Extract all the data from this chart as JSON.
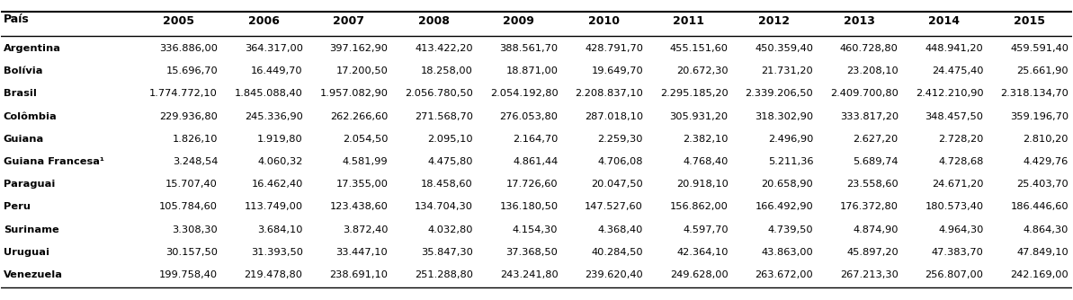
{
  "col_header": [
    "País",
    "2005",
    "2006",
    "2007",
    "2008",
    "2009",
    "2010",
    "2011",
    "2012",
    "2013",
    "2014",
    "2015"
  ],
  "rows": [
    [
      "Argentina",
      "336.886,00",
      "364.317,00",
      "397.162,90",
      "413.422,20",
      "388.561,70",
      "428.791,70",
      "455.151,60",
      "450.359,40",
      "460.728,80",
      "448.941,20",
      "459.591,40"
    ],
    [
      "Bolívia",
      "15.696,70",
      "16.449,70",
      "17.200,50",
      "18.258,00",
      "18.871,00",
      "19.649,70",
      "20.672,30",
      "21.731,20",
      "23.208,10",
      "24.475,40",
      "25.661,90"
    ],
    [
      "Brasil",
      "1.774.772,10",
      "1.845.088,40",
      "1.957.082,90",
      "2.056.780,50",
      "2.054.192,80",
      "2.208.837,10",
      "2.295.185,20",
      "2.339.206,50",
      "2.409.700,80",
      "2.412.210,90",
      "2.318.134,70"
    ],
    [
      "Colômbia",
      "229.936,80",
      "245.336,90",
      "262.266,60",
      "271.568,70",
      "276.053,80",
      "287.018,10",
      "305.931,20",
      "318.302,90",
      "333.817,20",
      "348.457,50",
      "359.196,70"
    ],
    [
      "Guiana",
      "1.826,10",
      "1.919,80",
      "2.054,50",
      "2.095,10",
      "2.164,70",
      "2.259,30",
      "2.382,10",
      "2.496,90",
      "2.627,20",
      "2.728,20",
      "2.810,20"
    ],
    [
      "Guiana Francesa¹",
      "3.248,54",
      "4.060,32",
      "4.581,99",
      "4.475,80",
      "4.861,44",
      "4.706,08",
      "4.768,40",
      "5.211,36",
      "5.689,74",
      "4.728,68",
      "4.429,76"
    ],
    [
      "Paraguai",
      "15.707,40",
      "16.462,40",
      "17.355,00",
      "18.458,60",
      "17.726,60",
      "20.047,50",
      "20.918,10",
      "20.658,90",
      "23.558,60",
      "24.671,20",
      "25.403,70"
    ],
    [
      "Peru",
      "105.784,60",
      "113.749,00",
      "123.438,60",
      "134.704,30",
      "136.180,50",
      "147.527,60",
      "156.862,00",
      "166.492,90",
      "176.372,80",
      "180.573,40",
      "186.446,60"
    ],
    [
      "Suriname",
      "3.308,30",
      "3.684,10",
      "3.872,40",
      "4.032,80",
      "4.154,30",
      "4.368,40",
      "4.597,70",
      "4.739,50",
      "4.874,90",
      "4.964,30",
      "4.864,30"
    ],
    [
      "Uruguai",
      "30.157,50",
      "31.393,50",
      "33.447,10",
      "35.847,30",
      "37.368,50",
      "40.284,50",
      "42.364,10",
      "43.863,00",
      "45.897,20",
      "47.383,70",
      "47.849,10"
    ],
    [
      "Venezuela",
      "199.758,40",
      "219.478,80",
      "238.691,10",
      "251.288,80",
      "243.241,80",
      "239.620,40",
      "249.628,00",
      "263.672,00",
      "267.213,30",
      "256.807,00",
      "242.169,00"
    ]
  ],
  "background_color": "#ffffff",
  "header_line_color": "#000000",
  "text_color": "#000000",
  "bold_rows": true
}
